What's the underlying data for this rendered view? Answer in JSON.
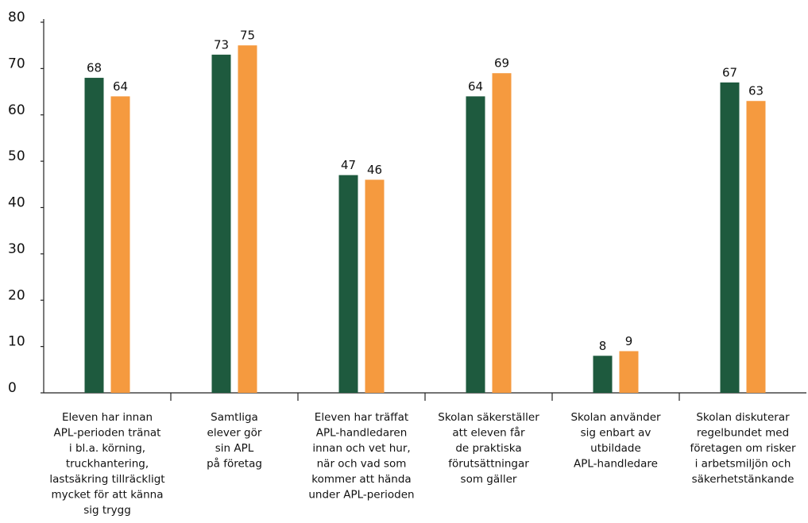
{
  "chart_data": {
    "type": "bar",
    "categories": [
      [
        "Eleven har innan",
        "APL-perioden tränat",
        "i bl.a. körning,",
        "truckhantering,",
        "lastsäkring tillräckligt",
        "mycket för att känna",
        "sig trygg"
      ],
      [
        "Samtliga",
        "elever gör",
        "sin APL",
        "på företag"
      ],
      [
        "Eleven har träffat",
        "APL-handledaren",
        "innan och vet hur,",
        "när och vad som",
        "kommer att hända",
        "under APL-perioden"
      ],
      [
        "Skolan säkerställer",
        "att eleven får",
        "de praktiska",
        "förutsättningar",
        "som gäller"
      ],
      [
        "Skolan använder",
        "sig enbart av",
        "utbildade",
        "APL-handledare"
      ],
      [
        "Skolan diskuterar",
        "regelbundet med",
        "företagen om risker",
        "i arbetsmiljön och",
        "säkerhetstänkande"
      ]
    ],
    "series": [
      {
        "color": "#1e5a3e",
        "values": [
          68,
          73,
          47,
          64,
          8,
          67
        ]
      },
      {
        "color": "#f59a3f",
        "values": [
          64,
          75,
          46,
          69,
          9,
          63
        ]
      }
    ],
    "ylim": [
      0,
      80
    ],
    "yticks": [
      0,
      10,
      20,
      30,
      40,
      50,
      60,
      70,
      80
    ],
    "grid": false
  }
}
